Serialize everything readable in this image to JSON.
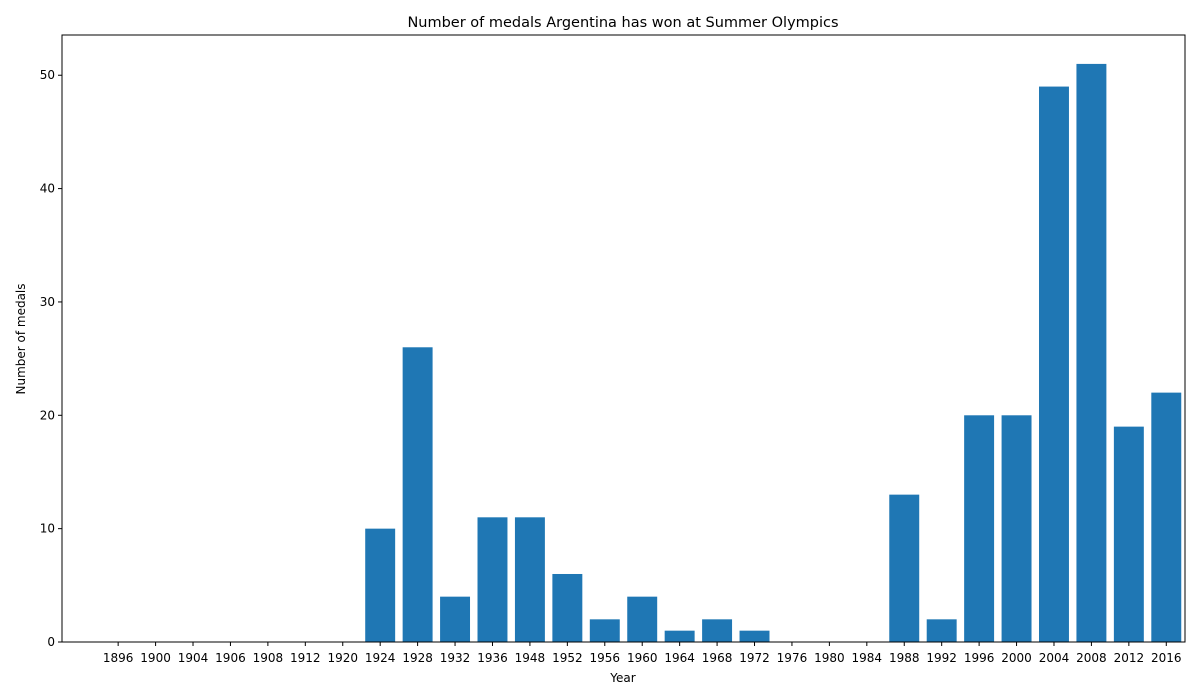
{
  "chart_data": {
    "type": "bar",
    "title": "Number of medals Argentina has won at Summer Olympics",
    "xlabel": "Year",
    "ylabel": "Number of medals",
    "categories": [
      "1896",
      "1900",
      "1904",
      "1906",
      "1908",
      "1912",
      "1920",
      "1924",
      "1928",
      "1932",
      "1936",
      "1948",
      "1952",
      "1956",
      "1960",
      "1964",
      "1968",
      "1972",
      "1976",
      "1980",
      "1984",
      "1988",
      "1992",
      "1996",
      "2000",
      "2004",
      "2008",
      "2012",
      "2016"
    ],
    "values": [
      0,
      0,
      0,
      0,
      0,
      0,
      0,
      10,
      26,
      4,
      11,
      11,
      6,
      2,
      4,
      1,
      2,
      1,
      0,
      0,
      0,
      13,
      2,
      20,
      20,
      49,
      51,
      19,
      22
    ],
    "ylim": [
      0,
      53.55
    ],
    "yticks": [
      0,
      10,
      20,
      30,
      40,
      50
    ],
    "grid": false,
    "bar_color": "#1f77b4"
  }
}
